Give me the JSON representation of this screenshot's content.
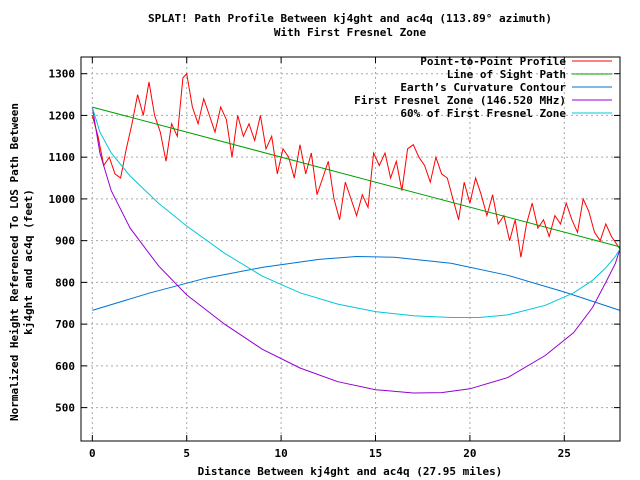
{
  "chart_data": {
    "type": "line",
    "title": "SPLAT! Path Profile Between kj4ght and ac4q (113.89° azimuth)",
    "subtitle": "With First Fresnel Zone",
    "xlabel": "Distance Between kj4ght and ac4q (27.95 miles)",
    "ylabel_line1": "Normalized Height Referenced To LOS Path Between",
    "ylabel_line2": "kj4ght and ac4q (feet)",
    "xlim": [
      -0.6,
      27.95
    ],
    "ylim": [
      420,
      1340
    ],
    "x_ticks": [
      0,
      5,
      10,
      15,
      20,
      25
    ],
    "x_tick_labels": [
      "0",
      "5",
      "10",
      "15",
      "20",
      "25"
    ],
    "y_ticks": [
      500,
      600,
      700,
      800,
      900,
      1000,
      1100,
      1200,
      1300
    ],
    "y_tick_labels": [
      "500",
      "600",
      "700",
      "800",
      "900",
      "1000",
      "1100",
      "1200",
      "1300"
    ],
    "grid": true,
    "legend_position": "top-right",
    "series": [
      {
        "name": "Point-to-Point Profile",
        "color": "#ff0000",
        "x": [
          0,
          0.3,
          0.6,
          0.9,
          1.2,
          1.5,
          1.8,
          2.1,
          2.4,
          2.7,
          3.0,
          3.3,
          3.6,
          3.9,
          4.2,
          4.5,
          4.8,
          5.0,
          5.3,
          5.6,
          5.9,
          6.2,
          6.5,
          6.8,
          7.1,
          7.4,
          7.7,
          8.0,
          8.3,
          8.6,
          8.9,
          9.2,
          9.5,
          9.8,
          10.1,
          10.4,
          10.7,
          11.0,
          11.3,
          11.6,
          11.9,
          12.2,
          12.5,
          12.8,
          13.1,
          13.4,
          13.7,
          14.0,
          14.3,
          14.6,
          14.9,
          15.2,
          15.5,
          15.8,
          16.1,
          16.4,
          16.7,
          17.0,
          17.3,
          17.6,
          17.9,
          18.2,
          18.5,
          18.8,
          19.1,
          19.4,
          19.7,
          20.0,
          20.3,
          20.6,
          20.9,
          21.2,
          21.5,
          21.8,
          22.1,
          22.4,
          22.7,
          23.0,
          23.3,
          23.6,
          23.9,
          24.2,
          24.5,
          24.8,
          25.1,
          25.4,
          25.7,
          26.0,
          26.3,
          26.6,
          26.9,
          27.2,
          27.5,
          27.95
        ],
        "y": [
          1200,
          1150,
          1080,
          1100,
          1060,
          1050,
          1120,
          1180,
          1250,
          1200,
          1280,
          1200,
          1160,
          1090,
          1180,
          1150,
          1290,
          1300,
          1220,
          1180,
          1240,
          1200,
          1160,
          1220,
          1190,
          1100,
          1200,
          1150,
          1180,
          1140,
          1200,
          1120,
          1150,
          1060,
          1120,
          1100,
          1050,
          1130,
          1060,
          1110,
          1010,
          1050,
          1090,
          1000,
          950,
          1040,
          1000,
          960,
          1010,
          980,
          1110,
          1080,
          1110,
          1050,
          1090,
          1020,
          1120,
          1130,
          1100,
          1080,
          1040,
          1100,
          1060,
          1050,
          1000,
          950,
          1040,
          990,
          1050,
          1010,
          960,
          1010,
          940,
          960,
          900,
          950,
          860,
          940,
          990,
          930,
          950,
          910,
          960,
          940,
          990,
          950,
          920,
          1000,
          970,
          920,
          900,
          940,
          910,
          880
        ]
      },
      {
        "name": "Line of Sight Path",
        "color": "#00a000",
        "x": [
          0,
          27.95
        ],
        "y": [
          1220,
          885
        ]
      },
      {
        "name": "Earth’s Curvature Contour",
        "color": "#0072d6",
        "x": [
          0,
          3,
          6,
          9,
          12,
          14,
          16,
          19,
          22,
          25,
          27.95
        ],
        "y": [
          733,
          774,
          810,
          836,
          855,
          862,
          860,
          846,
          817,
          777,
          733
        ]
      },
      {
        "name": "First Fresnel Zone (146.520 MHz)",
        "color": "#9400d3",
        "x": [
          0,
          0.4,
          1,
          2,
          3.5,
          5,
          7,
          9,
          11,
          13,
          15,
          17,
          18.5,
          20,
          22,
          24,
          25.5,
          26.5,
          27.2,
          27.7,
          27.95
        ],
        "y": [
          1220,
          1110,
          1020,
          930,
          840,
          770,
          700,
          640,
          595,
          562,
          543,
          535,
          536,
          545,
          572,
          625,
          680,
          740,
          800,
          845,
          880
        ]
      },
      {
        "name": "60% of First Fresnel Zone",
        "color": "#00c8d8",
        "x": [
          0,
          0.4,
          1,
          2,
          3.5,
          5,
          7,
          9,
          11,
          13,
          15,
          17,
          19,
          20.5,
          22,
          24,
          25.5,
          26.5,
          27.2,
          27.7,
          27.95
        ],
        "y": [
          1220,
          1160,
          1110,
          1055,
          990,
          935,
          870,
          815,
          775,
          748,
          730,
          720,
          716,
          716,
          722,
          745,
          775,
          805,
          835,
          862,
          880
        ]
      }
    ]
  }
}
